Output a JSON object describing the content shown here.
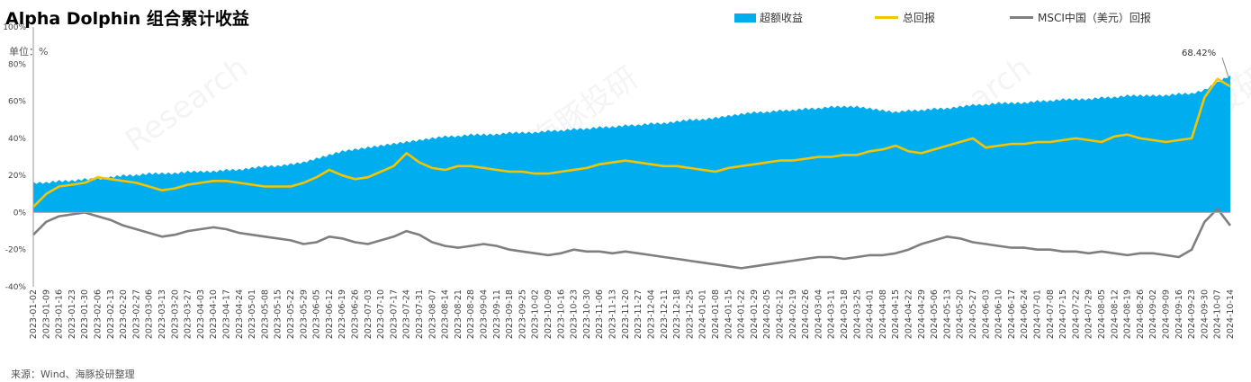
{
  "title": "Alpha Dolphin 组合累计收益",
  "unit_label": "单位：%",
  "source": "来源：Wind、海豚投研整理",
  "watermarks": [
    "海豚投研",
    "Research"
  ],
  "chart_data": {
    "type": "area",
    "title": "Alpha Dolphin 组合累计收益",
    "xlabel": "",
    "ylabel": "%",
    "ylim": [
      -40,
      100
    ],
    "y_ticks": [
      "100%",
      "80%",
      "60%",
      "40%",
      "20%",
      "0%",
      "-20%",
      "-40%"
    ],
    "y_tick_values": [
      100,
      80,
      60,
      40,
      20,
      0,
      -20,
      -40
    ],
    "grid": false,
    "legend_position": "top",
    "x_tick_labels": [
      "2023-01-02",
      "2023-01-09",
      "2023-01-16",
      "2023-01-23",
      "2023-01-30",
      "2023-02-06",
      "2023-02-13",
      "2023-02-20",
      "2023-02-27",
      "2023-03-06",
      "2023-03-13",
      "2023-03-20",
      "2023-03-27",
      "2023-04-03",
      "2023-04-10",
      "2023-04-17",
      "2023-04-24",
      "2023-05-01",
      "2023-05-08",
      "2023-05-15",
      "2023-05-22",
      "2023-05-29",
      "2023-06-05",
      "2023-06-12",
      "2023-06-19",
      "2023-06-26",
      "2023-07-03",
      "2023-07-10",
      "2023-07-17",
      "2023-07-24",
      "2023-07-31",
      "2023-08-07",
      "2023-08-14",
      "2023-08-21",
      "2023-08-28",
      "2023-09-04",
      "2023-09-11",
      "2023-09-18",
      "2023-09-25",
      "2023-10-02",
      "2023-10-09",
      "2023-10-16",
      "2023-10-23",
      "2023-10-30",
      "2023-11-06",
      "2023-11-13",
      "2023-11-20",
      "2023-11-27",
      "2023-12-04",
      "2023-12-11",
      "2023-12-18",
      "2023-12-25",
      "2024-01-01",
      "2024-01-08",
      "2024-01-15",
      "2024-01-22",
      "2024-01-29",
      "2024-02-05",
      "2024-02-12",
      "2024-02-19",
      "2024-02-26",
      "2024-03-04",
      "2024-03-11",
      "2024-03-18",
      "2024-03-25",
      "2024-04-01",
      "2024-04-08",
      "2024-04-15",
      "2024-04-22",
      "2024-04-29",
      "2024-05-06",
      "2024-05-13",
      "2024-05-20",
      "2024-05-27",
      "2024-06-03",
      "2024-06-10",
      "2024-06-17",
      "2024-06-24",
      "2024-07-01",
      "2024-07-08",
      "2024-07-15",
      "2024-07-22",
      "2024-07-29",
      "2024-08-05",
      "2024-08-12",
      "2024-08-19",
      "2024-08-26",
      "2024-09-02",
      "2024-09-09",
      "2024-09-16",
      "2024-09-23",
      "2024-09-30",
      "2024-10-07",
      "2024-10-14"
    ],
    "annotation": {
      "text": "68.42%",
      "series": "总回报"
    },
    "series": [
      {
        "name": "超额收益",
        "kind": "area",
        "color": "#00AEEF",
        "values": [
          16,
          16,
          17,
          17,
          18,
          18,
          19,
          20,
          20,
          21,
          21,
          21,
          22,
          22,
          22,
          23,
          23,
          24,
          25,
          25,
          26,
          27,
          29,
          31,
          33,
          34,
          35,
          36,
          37,
          38,
          39,
          40,
          41,
          41,
          42,
          42,
          42,
          43,
          43,
          43,
          44,
          44,
          45,
          45,
          46,
          46,
          47,
          47,
          48,
          48,
          49,
          50,
          50,
          51,
          52,
          53,
          54,
          54,
          55,
          55,
          56,
          56,
          57,
          57,
          57,
          56,
          55,
          54,
          55,
          55,
          56,
          56,
          57,
          58,
          58,
          59,
          59,
          59,
          60,
          60,
          61,
          61,
          61,
          62,
          62,
          63,
          63,
          63,
          63,
          64,
          64,
          66,
          70,
          74
        ]
      },
      {
        "name": "总回报",
        "kind": "line",
        "color": "#F5C400",
        "values": [
          3,
          10,
          14,
          15,
          16,
          19,
          18,
          17,
          16,
          14,
          12,
          13,
          15,
          16,
          17,
          17,
          16,
          15,
          14,
          14,
          14,
          16,
          19,
          23,
          20,
          18,
          19,
          22,
          25,
          32,
          27,
          24,
          23,
          25,
          25,
          24,
          23,
          22,
          22,
          21,
          21,
          22,
          23,
          24,
          26,
          27,
          28,
          27,
          26,
          25,
          25,
          24,
          23,
          22,
          24,
          25,
          26,
          27,
          28,
          28,
          29,
          30,
          30,
          31,
          31,
          33,
          34,
          36,
          33,
          32,
          34,
          36,
          38,
          40,
          35,
          36,
          37,
          37,
          38,
          38,
          39,
          40,
          39,
          38,
          41,
          42,
          40,
          39,
          38,
          39,
          40,
          62,
          72,
          68
        ]
      },
      {
        "name": "MSCI中国（美元）回报",
        "kind": "line",
        "color": "#7F7F7F",
        "values": [
          -12,
          -5,
          -2,
          -1,
          0,
          -2,
          -4,
          -7,
          -9,
          -11,
          -13,
          -12,
          -10,
          -9,
          -8,
          -9,
          -11,
          -12,
          -13,
          -14,
          -15,
          -17,
          -16,
          -13,
          -14,
          -16,
          -17,
          -15,
          -13,
          -10,
          -12,
          -16,
          -18,
          -19,
          -18,
          -17,
          -18,
          -20,
          -21,
          -22,
          -23,
          -22,
          -20,
          -21,
          -21,
          -22,
          -21,
          -22,
          -23,
          -24,
          -25,
          -26,
          -27,
          -28,
          -29,
          -30,
          -29,
          -28,
          -27,
          -26,
          -25,
          -24,
          -24,
          -25,
          -24,
          -23,
          -23,
          -22,
          -20,
          -17,
          -15,
          -13,
          -14,
          -16,
          -17,
          -18,
          -19,
          -19,
          -20,
          -20,
          -21,
          -21,
          -22,
          -21,
          -22,
          -23,
          -22,
          -22,
          -23,
          -24,
          -20,
          -5,
          2,
          -7
        ]
      }
    ]
  }
}
